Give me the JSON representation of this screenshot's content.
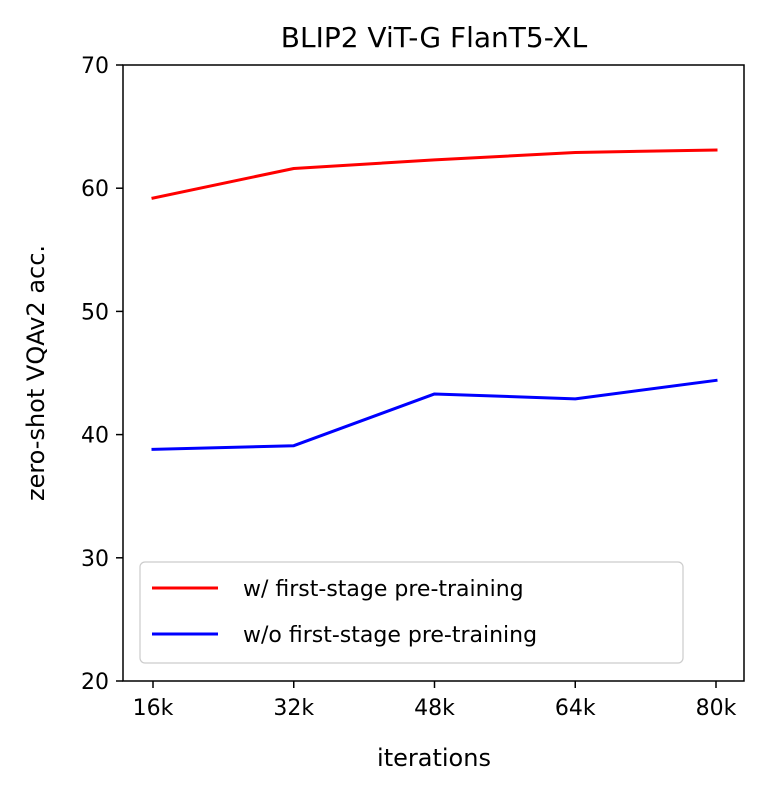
{
  "chart_data": {
    "type": "line",
    "title": "BLIP2 ViT-G FlanT5-XL",
    "xlabel": "iterations",
    "ylabel": "zero-shot VQAv2 acc.",
    "categories": [
      "16k",
      "32k",
      "48k",
      "64k",
      "80k"
    ],
    "ylim": [
      20,
      70
    ],
    "yticks": [
      20,
      30,
      40,
      50,
      60,
      70
    ],
    "grid": false,
    "legend_position": "lower-left",
    "series": [
      {
        "name": "w/ first-stage pre-training",
        "color": "#ff0000",
        "values": [
          59.2,
          61.6,
          62.3,
          62.9,
          63.1
        ]
      },
      {
        "name": "w/o first-stage pre-training",
        "color": "#0000ff",
        "values": [
          38.8,
          39.1,
          43.3,
          42.9,
          44.4
        ]
      }
    ]
  }
}
